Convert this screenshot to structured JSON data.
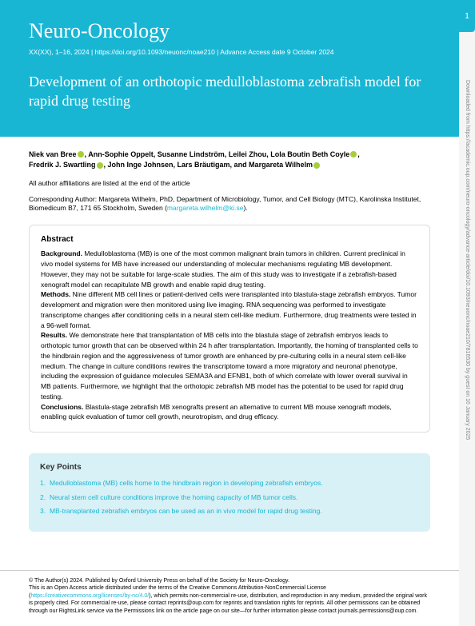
{
  "page_number": "1",
  "colors": {
    "accent": "#19b6d4",
    "kp_bg": "#d7f1f6",
    "orcid": "#a6ce39"
  },
  "header": {
    "journal": "Neuro-Oncology",
    "citation": "XX(XX), 1–16, 2024 | https://doi.org/10.1093/neuonc/noae210 | Advance Access date 9 October 2024",
    "title": "Development of an orthotopic medulloblastoma zebrafish model for rapid drug testing"
  },
  "authors": {
    "line1": "Niek van Bree",
    "line1b": ", Ann-Sophie Oppelt, Susanne Lindström, Leilei Zhou, Lola Boutin Beth Coyle",
    "line2": "Fredrik J. Swartling",
    "line2b": ", John Inge Johnsen, Lars Bräutigam, and Margareta Wilhelm",
    "affil_note": "All author affiliations are listed at the end of the article",
    "corresponding": "Corresponding Author: Margareta Wilhelm, PhD, Department of Microbiology, Tumor, and Cell Biology (MTC), Karolinska Institutet, Biomedicum B7, 171 65 Stockholm, Sweden (",
    "corr_email": "margareta.wilhelm@ki.se",
    "corr_close": ")."
  },
  "abstract": {
    "heading": "Abstract",
    "background_label": "Background. ",
    "background": "Medulloblastoma (MB) is one of the most common malignant brain tumors in children. Current preclinical in vivo model systems for MB have increased our understanding of molecular mechanisms regulating MB development. However, they may not be suitable for large-scale studies. The aim of this study was to investigate if a zebrafish-based xenograft model can recapitulate MB growth and enable rapid drug testing.",
    "methods_label": "Methods. ",
    "methods": "Nine different MB cell lines or patient-derived cells were transplanted into blastula-stage zebrafish embryos. Tumor development and migration were then monitored using live imaging. RNA sequencing was performed to investigate transcriptome changes after conditioning cells in a neural stem cell-like medium. Furthermore, drug treatments were tested in a 96-well format.",
    "results_label": "Results. ",
    "results": "We demonstrate here that transplantation of MB cells into the blastula stage of zebrafish embryos leads to orthotopic tumor growth that can be observed within 24 h after transplantation. Importantly, the homing of transplanted cells to the hindbrain region and the aggressiveness of tumor growth are enhanced by pre-culturing cells in a neural stem cell-like medium. The change in culture conditions rewires the transcriptome toward a more migratory and neuronal phenotype, including the expression of guidance molecules SEMA3A and EFNB1, both of which correlate with lower overall survival in MB patients. Furthermore, we highlight that the orthotopic zebrafish MB model has the potential to be used for rapid drug testing.",
    "conclusions_label": "Conclusions. ",
    "conclusions": "Blastula-stage zebrafish MB xenografts present an alternative to current MB mouse xenograft models, enabling quick evaluation of tumor cell growth, neurotropism, and drug efficacy."
  },
  "keypoints": {
    "title": "Key Points",
    "items": [
      "Medulloblastoma (MB) cells home to the hindbrain region in developing zebrafish embryos.",
      "Neural stem cell culture conditions improve the homing capacity of MB tumor cells.",
      "MB-transplanted zebrafish embryos can be used as an in vivo model for rapid drug testing."
    ]
  },
  "footer": {
    "copyright": "© The Author(s) 2024. Published by Oxford University Press on behalf of the Society for Neuro-Oncology.",
    "license_pre": "This is an Open Access article distributed under the terms of the Creative Commons Attribution-NonCommercial License (",
    "license_url": "https://creativecommons.org/licenses/by-nc/4.0/",
    "license_post": "), which permits non-commercial re-use, distribution, and reproduction in any medium, provided the original work is properly cited. For commercial re-use, please contact reprints@oup.com for reprints and translation rights for reprints. All other permissions can be obtained through our RightsLink service via the Permissions link on the article page on our site—for further information please contact journals.permissions@oup.com."
  },
  "side_note": "Downloaded from https://academic.oup.com/neuro-oncology/advance-article/doi/10.1093/neuonc/noae210/7816530 by guest on 16 January 2025"
}
